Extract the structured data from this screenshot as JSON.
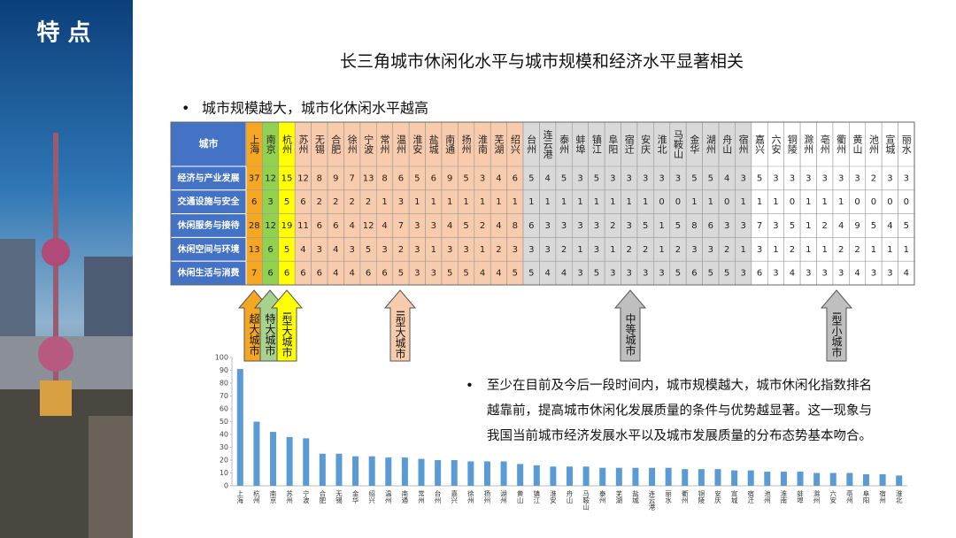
{
  "slide": {
    "section": "特 点",
    "title": "长三角城市休闲化水平与城市规模和经济水平显著相关",
    "bullet": "城市规模越大，城市化休闲水平越高"
  },
  "table": {
    "corner": "城市",
    "cities": [
      "上海",
      "南京",
      "杭州",
      "苏州",
      "无锡",
      "合肥",
      "徐州",
      "宁波",
      "常州",
      "温州",
      "淮安",
      "盐城",
      "南通",
      "扬州",
      "淮南",
      "芜湖",
      "绍兴",
      "台州",
      "连云港",
      "泰州",
      "蚌埠",
      "镇江",
      "阜阳",
      "宿迁",
      "安庆",
      "淮北",
      "马鞍山",
      "金华",
      "湖州",
      "舟山",
      "宿州",
      "嘉兴",
      "六安",
      "铜陵",
      "滁州",
      "亳州",
      "衢州",
      "黄山",
      "池州",
      "宣城",
      "丽水"
    ],
    "rows": [
      {
        "label": "经济与产业发展",
        "values": [
          37,
          12,
          15,
          12,
          8,
          9,
          7,
          13,
          8,
          6,
          5,
          6,
          9,
          5,
          3,
          4,
          6,
          5,
          4,
          5,
          3,
          5,
          3,
          3,
          3,
          3,
          3,
          5,
          5,
          4,
          3,
          5,
          3,
          3,
          3,
          3,
          3,
          3,
          2,
          3,
          3
        ]
      },
      {
        "label": "交通设施与安全",
        "values": [
          6,
          3,
          5,
          6,
          2,
          2,
          2,
          2,
          1,
          3,
          1,
          1,
          1,
          1,
          1,
          1,
          1,
          1,
          1,
          1,
          1,
          1,
          1,
          1,
          1,
          0,
          0,
          1,
          1,
          0,
          1,
          1,
          1,
          0,
          1,
          1,
          1,
          0,
          0,
          0,
          0
        ]
      },
      {
        "label": "休闲服务与接待",
        "values": [
          28,
          12,
          19,
          11,
          6,
          6,
          4,
          12,
          4,
          7,
          3,
          3,
          4,
          5,
          2,
          4,
          8,
          6,
          3,
          3,
          3,
          3,
          2,
          3,
          5,
          1,
          5,
          8,
          6,
          3,
          3,
          7,
          3,
          5,
          1,
          2,
          4,
          9,
          5,
          4,
          5
        ]
      },
      {
        "label": "休闲空间与环境",
        "values": [
          13,
          6,
          5,
          4,
          3,
          4,
          3,
          5,
          3,
          2,
          3,
          1,
          3,
          3,
          1,
          2,
          3,
          3,
          3,
          2,
          1,
          3,
          1,
          2,
          2,
          1,
          2,
          3,
          3,
          2,
          1,
          3,
          1,
          2,
          1,
          1,
          2,
          2,
          1,
          1,
          1
        ]
      },
      {
        "label": "休闲生活与消费",
        "values": [
          7,
          6,
          6,
          6,
          6,
          4,
          4,
          6,
          6,
          5,
          3,
          3,
          5,
          5,
          4,
          4,
          5,
          5,
          4,
          4,
          3,
          5,
          3,
          3,
          3,
          3,
          5,
          6,
          5,
          5,
          3,
          6,
          3,
          4,
          3,
          3,
          3,
          4,
          3,
          3,
          4
        ]
      }
    ]
  },
  "arrows": [
    "超大城市",
    "特大城市",
    "I型大城市",
    "II型大城市",
    "中等城市",
    "I型小城市"
  ],
  "paragraph": [
    "至少在目前及今后一段时间内，城市规模越大，城市休闲化指数排名",
    "越靠前，提高城市休闲化发展质量的条件与优势越显著。这一现象与",
    "我国当前城市经济发展水平以及城市发展质量的分布态势基本吻合。"
  ],
  "chart_data": {
    "type": "bar",
    "categories": [
      "上海",
      "杭州",
      "南京",
      "苏州",
      "宁波",
      "合肥",
      "无锡",
      "金华",
      "绍兴",
      "温州",
      "南通",
      "常州",
      "台州",
      "嘉兴",
      "徐州",
      "扬州",
      "湖州",
      "黄山",
      "镇江",
      "淮安",
      "舟山",
      "马鞍山",
      "泰州",
      "芜湖",
      "盐城",
      "连云港",
      "丽水",
      "衢州",
      "铜陵",
      "安庆",
      "宣城",
      "宿迁",
      "池州",
      "淮南",
      "蚌埠",
      "滁州",
      "六安",
      "亳州",
      "阜阳",
      "宿州",
      "淮北"
    ],
    "values": [
      91,
      50,
      42,
      38,
      37,
      25,
      25,
      23,
      23,
      22,
      22,
      21,
      20,
      20,
      19,
      19,
      19,
      17,
      16,
      15,
      15,
      15,
      14,
      14,
      14,
      14,
      14,
      13,
      13,
      13,
      12,
      12,
      11,
      11,
      11,
      10,
      10,
      10,
      9,
      9,
      8
    ],
    "color": "#5b9bd5",
    "ylim": [
      0,
      100
    ],
    "yticks": [
      0,
      10,
      20,
      30,
      40,
      50,
      60,
      70,
      80,
      90,
      100
    ]
  }
}
